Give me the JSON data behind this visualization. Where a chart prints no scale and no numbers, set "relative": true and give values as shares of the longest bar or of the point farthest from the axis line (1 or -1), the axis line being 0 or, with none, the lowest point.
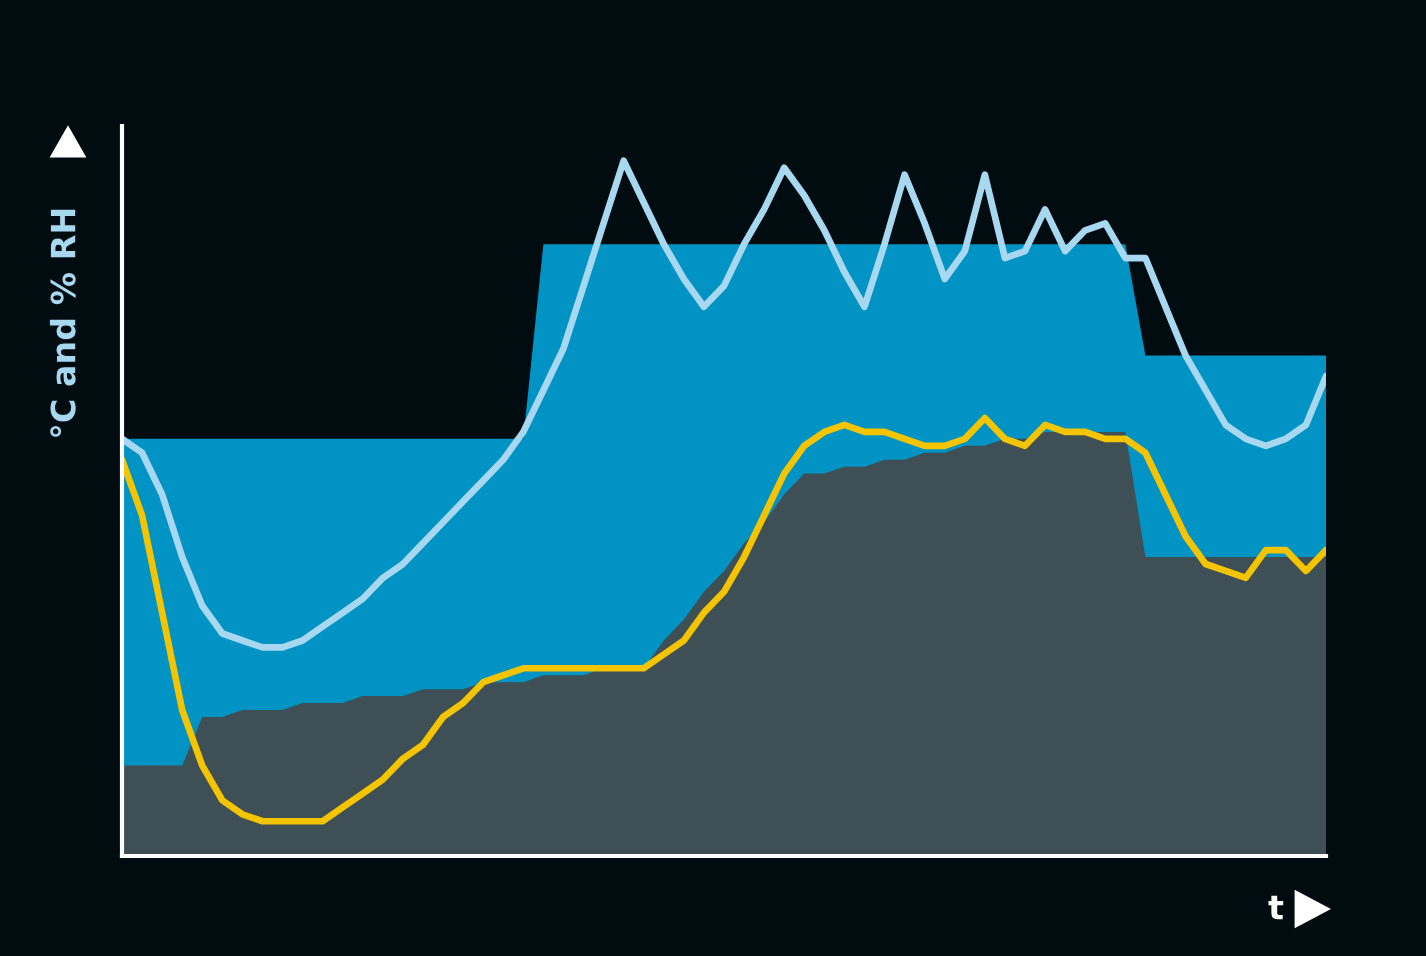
{
  "chart_data": {
    "type": "line",
    "relative": true,
    "ylabel": "°C and % RH",
    "xlabel": "t",
    "legend": false,
    "categories": [
      null,
      null,
      null,
      null,
      null,
      null,
      null,
      null,
      null,
      null,
      null,
      null,
      null,
      null,
      null,
      null,
      null,
      null,
      null,
      null,
      null,
      null,
      null,
      null,
      null,
      null,
      null,
      null,
      null,
      null,
      null,
      null,
      null,
      null,
      null,
      null,
      null,
      null,
      null,
      null,
      null,
      null,
      null,
      null,
      null,
      null,
      null,
      null,
      null,
      null,
      null,
      null,
      null,
      null,
      null,
      null,
      null,
      null,
      null,
      null,
      null
    ],
    "series": [
      {
        "type": "area",
        "color": "#0093c4",
        "values": [
          0.6,
          0.6,
          0.6,
          0.6,
          0.6,
          0.6,
          0.6,
          0.6,
          0.6,
          0.6,
          0.6,
          0.6,
          0.6,
          0.6,
          0.6,
          0.6,
          0.6,
          0.6,
          0.6,
          0.6,
          0.6,
          0.88,
          0.88,
          0.88,
          0.88,
          0.88,
          0.88,
          0.88,
          0.88,
          0.88,
          0.88,
          0.88,
          0.88,
          0.88,
          0.88,
          0.88,
          0.88,
          0.88,
          0.88,
          0.88,
          0.88,
          0.88,
          0.88,
          0.88,
          0.88,
          0.88,
          0.88,
          0.88,
          0.88,
          0.88,
          0.88,
          0.72,
          0.72,
          0.72,
          0.72,
          0.72,
          0.72,
          0.72,
          0.72,
          0.72,
          0.72
        ]
      },
      {
        "type": "area",
        "color": "#3e4f55",
        "values": [
          0.13,
          0.13,
          0.13,
          0.13,
          0.2,
          0.2,
          0.21,
          0.21,
          0.21,
          0.22,
          0.22,
          0.22,
          0.23,
          0.23,
          0.23,
          0.24,
          0.24,
          0.24,
          0.25,
          0.25,
          0.25,
          0.26,
          0.26,
          0.26,
          0.27,
          0.27,
          0.27,
          0.31,
          0.34,
          0.38,
          0.41,
          0.45,
          0.48,
          0.52,
          0.55,
          0.55,
          0.56,
          0.56,
          0.57,
          0.57,
          0.58,
          0.58,
          0.59,
          0.59,
          0.6,
          0.6,
          0.61,
          0.61,
          0.61,
          0.61,
          0.61,
          0.43,
          0.43,
          0.43,
          0.43,
          0.43,
          0.43,
          0.43,
          0.43,
          0.43,
          0.43
        ]
      },
      {
        "color": "#a8d8ef",
        "values": [
          0.6,
          0.58,
          0.52,
          0.43,
          0.36,
          0.32,
          0.31,
          0.3,
          0.3,
          0.31,
          0.33,
          0.35,
          0.37,
          0.4,
          0.42,
          0.45,
          0.48,
          0.51,
          0.54,
          0.57,
          0.61,
          0.67,
          0.73,
          0.82,
          0.91,
          1.0,
          0.94,
          0.88,
          0.83,
          0.79,
          0.82,
          0.88,
          0.93,
          0.99,
          0.95,
          0.9,
          0.84,
          0.79,
          0.88,
          0.98,
          0.91,
          0.83,
          0.87,
          0.98,
          0.86,
          0.87,
          0.93,
          0.87,
          0.9,
          0.91,
          0.86,
          0.86,
          0.79,
          0.72,
          0.67,
          0.62,
          0.6,
          0.59,
          0.6,
          0.62,
          0.69
        ]
      },
      {
        "color": "#f5c400",
        "values": [
          0.57,
          0.49,
          0.35,
          0.21,
          0.13,
          0.08,
          0.06,
          0.05,
          0.05,
          0.05,
          0.05,
          0.07,
          0.09,
          0.11,
          0.14,
          0.16,
          0.2,
          0.22,
          0.25,
          0.26,
          0.27,
          0.27,
          0.27,
          0.27,
          0.27,
          0.27,
          0.27,
          0.29,
          0.31,
          0.35,
          0.38,
          0.43,
          0.49,
          0.55,
          0.59,
          0.61,
          0.62,
          0.61,
          0.61,
          0.6,
          0.59,
          0.59,
          0.6,
          0.63,
          0.6,
          0.59,
          0.62,
          0.61,
          0.61,
          0.6,
          0.6,
          0.58,
          0.52,
          0.46,
          0.42,
          0.41,
          0.4,
          0.44,
          0.44,
          0.41,
          0.44
        ]
      }
    ]
  }
}
